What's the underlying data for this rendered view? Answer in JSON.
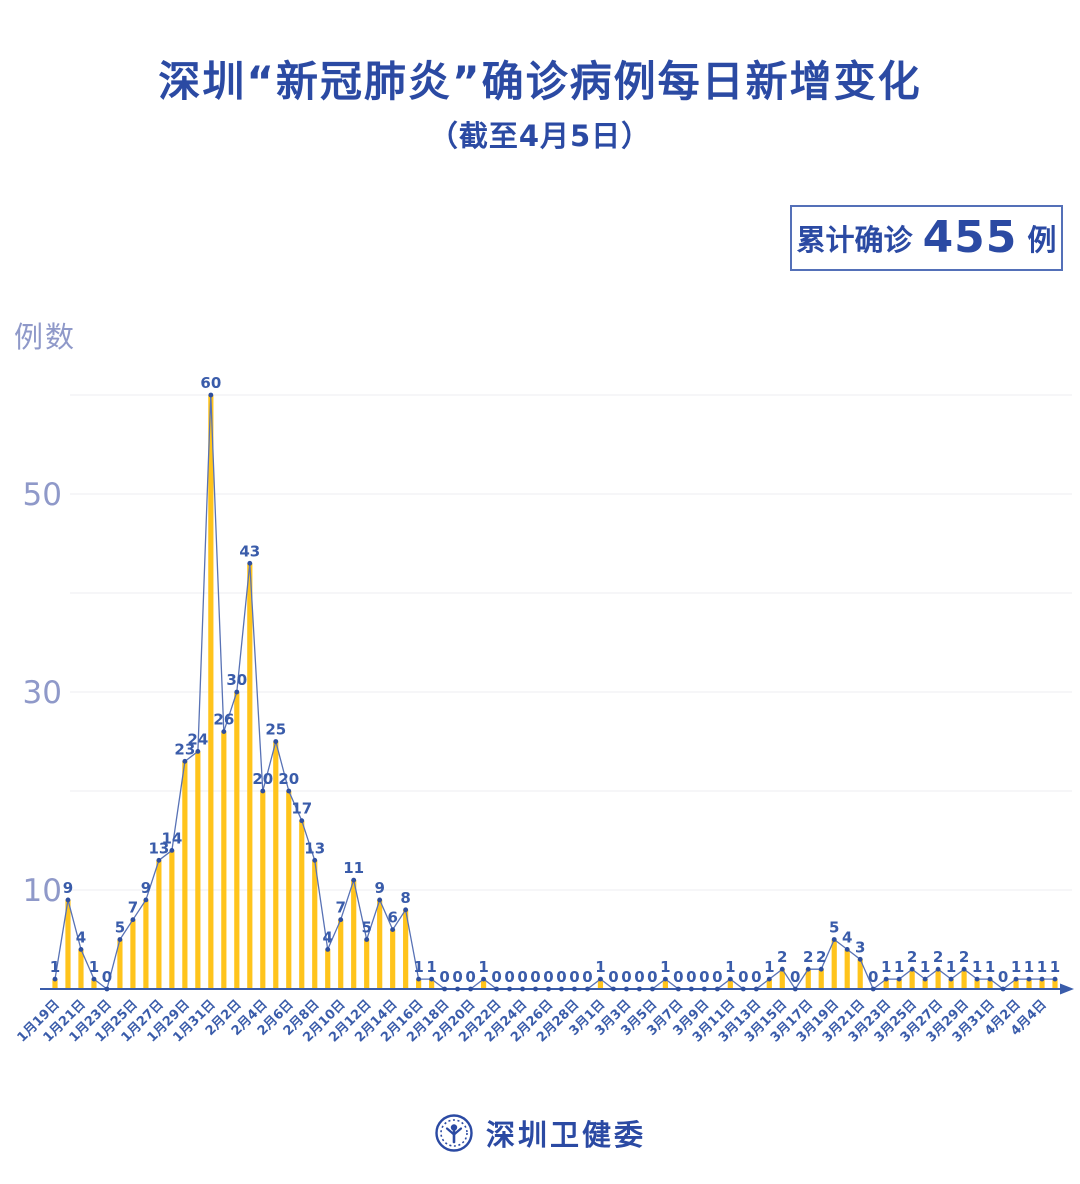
{
  "title": "深圳“新冠肺炎”确诊病例每日新增变化",
  "subtitle": "（截至4月5日）",
  "badge": {
    "prefix": "累计确诊",
    "value": "455",
    "suffix": "例"
  },
  "y_axis_title": "例数",
  "footer": {
    "org": "深圳卫健委"
  },
  "colors": {
    "title": "#2B4AA3",
    "badge_border": "#5470B8",
    "bar": "#FFC41C",
    "line": "#5872B5",
    "dot": "#2F4F9E",
    "value_label": "#3A5CAA",
    "axis": "#3A5CAA",
    "grid": "#ECECF2",
    "ytick": "#8F99C9"
  },
  "chart_data": {
    "type": "bar",
    "title": "深圳“新冠肺炎”确诊病例每日新增变化（截至4月5日）",
    "xlabel": "",
    "ylabel": "例数",
    "ylim": [
      0,
      62
    ],
    "gridlines": [
      10,
      20,
      30,
      40,
      50,
      60
    ],
    "ytick_labels": [
      10,
      30,
      50
    ],
    "xtick_every": 2,
    "legend": "none",
    "value_labels_shown": true,
    "cumulative_total": 455,
    "x": [
      "1月19日",
      "1月20日",
      "1月21日",
      "1月22日",
      "1月23日",
      "1月24日",
      "1月25日",
      "1月26日",
      "1月27日",
      "1月28日",
      "1月29日",
      "1月30日",
      "1月31日",
      "2月1日",
      "2月2日",
      "2月3日",
      "2月4日",
      "2月5日",
      "2月6日",
      "2月7日",
      "2月8日",
      "2月9日",
      "2月10日",
      "2月11日",
      "2月12日",
      "2月13日",
      "2月14日",
      "2月15日",
      "2月16日",
      "2月17日",
      "2月18日",
      "2月19日",
      "2月20日",
      "2月21日",
      "2月22日",
      "2月23日",
      "2月24日",
      "2月25日",
      "2月26日",
      "2月27日",
      "2月28日",
      "2月29日",
      "3月1日",
      "3月2日",
      "3月3日",
      "3月4日",
      "3月5日",
      "3月6日",
      "3月7日",
      "3月8日",
      "3月9日",
      "3月10日",
      "3月11日",
      "3月12日",
      "3月13日",
      "3月14日",
      "3月15日",
      "3月16日",
      "3月17日",
      "3月18日",
      "3月19日",
      "3月20日",
      "3月21日",
      "3月22日",
      "3月23日",
      "3月24日",
      "3月25日",
      "3月26日",
      "3月27日",
      "3月28日",
      "3月29日",
      "3月30日",
      "3月31日",
      "4月1日",
      "4月2日",
      "4月3日",
      "4月4日",
      "4月5日"
    ],
    "values": [
      1,
      9,
      4,
      1,
      0,
      5,
      7,
      9,
      13,
      14,
      23,
      24,
      60,
      26,
      30,
      43,
      20,
      25,
      20,
      17,
      13,
      4,
      7,
      11,
      5,
      9,
      6,
      8,
      1,
      1,
      0,
      0,
      0,
      1,
      0,
      0,
      0,
      0,
      0,
      0,
      0,
      0,
      1,
      0,
      0,
      0,
      0,
      1,
      0,
      0,
      0,
      0,
      1,
      0,
      0,
      1,
      2,
      0,
      2,
      2,
      5,
      4,
      3,
      0,
      1,
      1,
      2,
      1,
      2,
      1,
      2,
      1,
      1,
      0,
      1,
      1,
      1,
      1
    ]
  }
}
